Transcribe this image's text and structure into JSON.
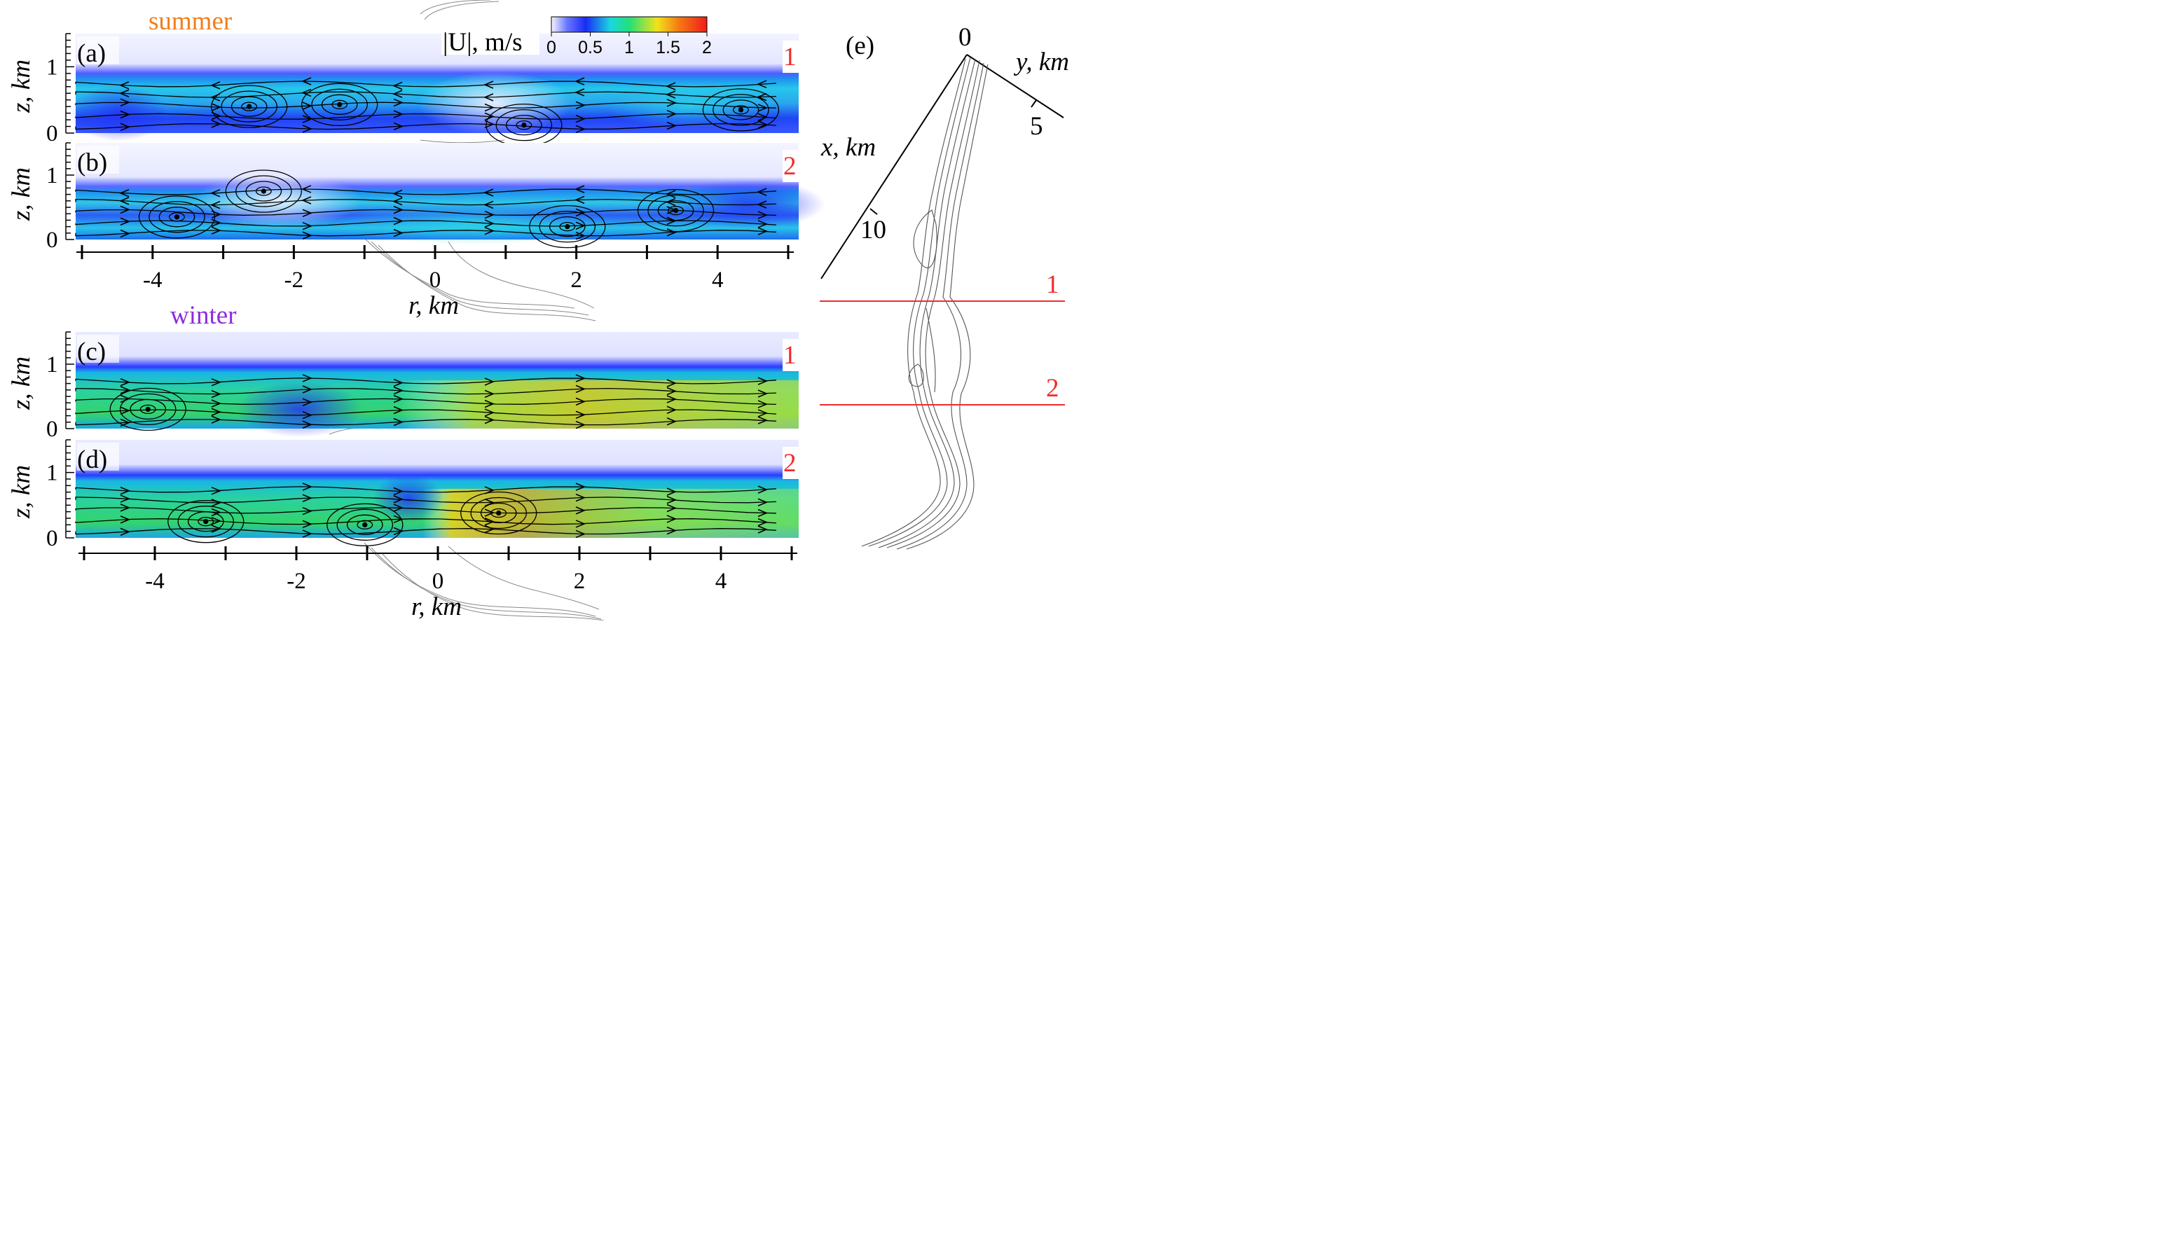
{
  "colors": {
    "summer": "#f07f1a",
    "winter": "#8f2bdc",
    "section": "#f02c2c",
    "axis": "#000000",
    "colormap": [
      "#f5f5ff",
      "#1a2bf5",
      "#1ad7e0",
      "#22e07a",
      "#f2e31a",
      "#f57a12",
      "#ee1c1c"
    ]
  },
  "labels": {
    "summer": "summer",
    "winter": "winter",
    "z_axis": "z, km",
    "r_axis": "r, km",
    "colorbar_title": "|U|, m/s",
    "e_x_axis": "x, km",
    "e_y_axis": "y, km"
  },
  "chart_data": [
    {
      "type": "heatmap",
      "panel": "(a)",
      "season": "summer",
      "section": "1",
      "xlabel": "r, km",
      "ylabel": "z, km",
      "xlim": [
        -5,
        5
      ],
      "ylim": [
        0,
        1.5
      ],
      "xticks": [
        "-4",
        "-2",
        "0",
        "2",
        "4"
      ],
      "yticks": [
        "0",
        "1"
      ],
      "vortex_centers": [
        [
          -2.6,
          0.4
        ],
        [
          -1.35,
          0.43
        ],
        [
          1.2,
          0.12
        ],
        [
          4.2,
          0.35
        ]
      ]
    },
    {
      "type": "heatmap",
      "panel": "(b)",
      "season": "summer",
      "section": "2",
      "xlabel": "r, km",
      "ylabel": "z, km",
      "xlim": [
        -5,
        5
      ],
      "ylim": [
        0,
        1.5
      ],
      "xticks": [
        "-4",
        "-2",
        "0",
        "2",
        "4"
      ],
      "yticks": [
        "0",
        "1"
      ],
      "vortex_centers": [
        [
          -3.6,
          0.35
        ],
        [
          -2.4,
          0.75
        ],
        [
          1.8,
          0.2
        ],
        [
          3.3,
          0.45
        ]
      ]
    },
    {
      "type": "heatmap",
      "panel": "(c)",
      "season": "winter",
      "section": "1",
      "xlabel": "r, km",
      "ylabel": "z, km",
      "xlim": [
        -5,
        5
      ],
      "ylim": [
        0,
        1.5
      ],
      "xticks": [
        "-4",
        "-2",
        "0",
        "2",
        "4"
      ],
      "yticks": [
        "0",
        "1"
      ],
      "vortex_centers": [
        [
          -4.0,
          0.3
        ]
      ]
    },
    {
      "type": "heatmap",
      "panel": "(d)",
      "season": "winter",
      "section": "2",
      "xlabel": "r, km",
      "ylabel": "z, km",
      "xlim": [
        -5,
        5
      ],
      "ylim": [
        0,
        1.5
      ],
      "xticks": [
        "-4",
        "-2",
        "0",
        "2",
        "4"
      ],
      "yticks": [
        "0",
        "1"
      ],
      "vortex_centers": [
        [
          -3.2,
          0.25
        ],
        [
          -1.0,
          0.2
        ],
        [
          0.85,
          0.38
        ]
      ]
    }
  ],
  "colorbar": {
    "title": "|U|, m/s",
    "range": [
      0,
      2
    ],
    "ticks": [
      "0",
      "0.5",
      "1",
      "1.5",
      "2"
    ]
  },
  "panel_e": {
    "label": "(e)",
    "x_axis": "x, km",
    "y_axis": "y, km",
    "x_ticks": [
      "0",
      "10"
    ],
    "y_ticks": [
      "5"
    ],
    "sections": [
      "1",
      "2"
    ]
  }
}
